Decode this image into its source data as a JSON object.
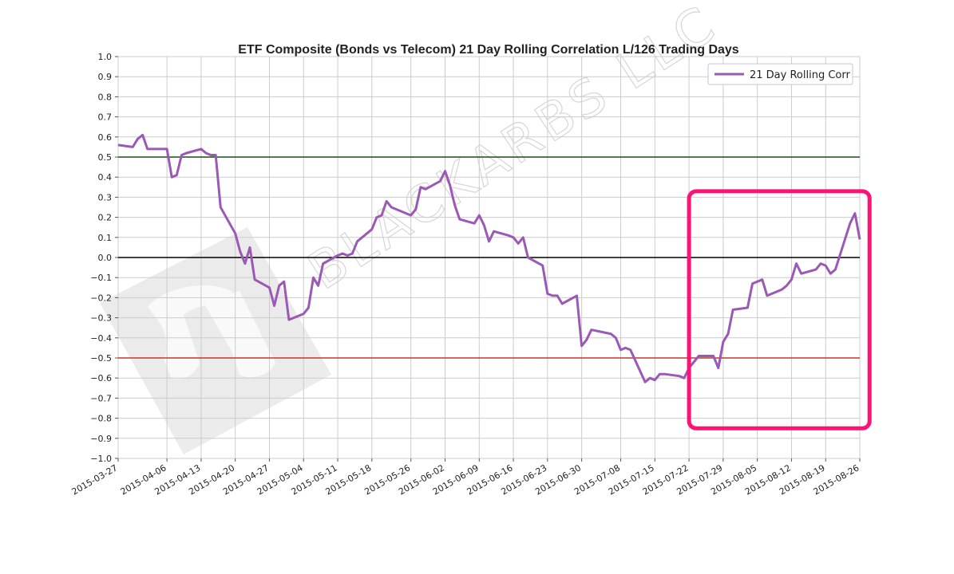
{
  "chart_data": {
    "type": "line",
    "title": "ETF Composite (Bonds vs Telecom) 21 Day Rolling Correlation L/126 Trading Days",
    "xlabel": "",
    "ylabel": "",
    "ylim": [
      -1.0,
      1.0
    ],
    "xlim": [
      "2015-03-27",
      "2015-08-26"
    ],
    "grid": true,
    "legend_placement": "top-right",
    "yticks": [
      "1.0",
      "0.9",
      "0.8",
      "0.7",
      "0.6",
      "0.5",
      "0.4",
      "0.3",
      "0.2",
      "0.1",
      "0.0",
      "−0.1",
      "−0.2",
      "−0.3",
      "−0.4",
      "−0.5",
      "−0.6",
      "−0.7",
      "−0.8",
      "−0.9",
      "−1.0"
    ],
    "xticks": [
      "2015-03-27",
      "2015-04-06",
      "2015-04-13",
      "2015-04-20",
      "2015-04-27",
      "2015-05-04",
      "2015-05-11",
      "2015-05-18",
      "2015-05-26",
      "2015-06-02",
      "2015-06-09",
      "2015-06-16",
      "2015-06-23",
      "2015-06-30",
      "2015-07-08",
      "2015-07-15",
      "2015-07-22",
      "2015-07-29",
      "2015-08-05",
      "2015-08-12",
      "2015-08-19",
      "2015-08-26"
    ],
    "reference_lines": [
      {
        "y": 0.5,
        "color": "#1a4d1a"
      },
      {
        "y": 0.0,
        "color": "#000000"
      },
      {
        "y": -0.5,
        "color": "#c0392b"
      }
    ],
    "series": [
      {
        "name": "21 Day Rolling Corr",
        "color": "#9b59b6",
        "x": [
          "2015-03-27",
          "2015-03-30",
          "2015-03-31",
          "2015-04-01",
          "2015-04-02",
          "2015-04-06",
          "2015-04-07",
          "2015-04-08",
          "2015-04-09",
          "2015-04-10",
          "2015-04-13",
          "2015-04-14",
          "2015-04-15",
          "2015-04-16",
          "2015-04-17",
          "2015-04-20",
          "2015-04-21",
          "2015-04-22",
          "2015-04-23",
          "2015-04-24",
          "2015-04-27",
          "2015-04-28",
          "2015-04-29",
          "2015-04-30",
          "2015-05-01",
          "2015-05-04",
          "2015-05-05",
          "2015-05-06",
          "2015-05-07",
          "2015-05-08",
          "2015-05-11",
          "2015-05-12",
          "2015-05-13",
          "2015-05-14",
          "2015-05-15",
          "2015-05-18",
          "2015-05-19",
          "2015-05-20",
          "2015-05-21",
          "2015-05-22",
          "2015-05-26",
          "2015-05-27",
          "2015-05-28",
          "2015-05-29",
          "2015-06-01",
          "2015-06-02",
          "2015-06-03",
          "2015-06-04",
          "2015-06-05",
          "2015-06-08",
          "2015-06-09",
          "2015-06-10",
          "2015-06-11",
          "2015-06-12",
          "2015-06-15",
          "2015-06-16",
          "2015-06-17",
          "2015-06-18",
          "2015-06-19",
          "2015-06-22",
          "2015-06-23",
          "2015-06-24",
          "2015-06-25",
          "2015-06-26",
          "2015-06-29",
          "2015-06-30",
          "2015-07-01",
          "2015-07-02",
          "2015-07-06",
          "2015-07-07",
          "2015-07-08",
          "2015-07-09",
          "2015-07-10",
          "2015-07-13",
          "2015-07-14",
          "2015-07-15",
          "2015-07-16",
          "2015-07-17",
          "2015-07-20",
          "2015-07-21",
          "2015-07-22",
          "2015-07-23",
          "2015-07-24",
          "2015-07-27",
          "2015-07-28",
          "2015-07-29",
          "2015-07-30",
          "2015-07-31",
          "2015-08-03",
          "2015-08-04",
          "2015-08-05",
          "2015-08-06",
          "2015-08-07",
          "2015-08-10",
          "2015-08-11",
          "2015-08-12",
          "2015-08-13",
          "2015-08-14",
          "2015-08-17",
          "2015-08-18",
          "2015-08-19",
          "2015-08-20",
          "2015-08-21",
          "2015-08-24",
          "2015-08-25",
          "2015-08-26"
        ],
        "y": [
          0.56,
          0.55,
          0.59,
          0.61,
          0.54,
          0.54,
          0.4,
          0.41,
          0.51,
          0.52,
          0.54,
          0.52,
          0.51,
          0.51,
          0.25,
          0.12,
          0.03,
          -0.03,
          0.05,
          -0.11,
          -0.15,
          -0.24,
          -0.14,
          -0.12,
          -0.31,
          -0.28,
          -0.25,
          -0.1,
          -0.14,
          -0.03,
          0.01,
          0.02,
          0.01,
          0.02,
          0.08,
          0.14,
          0.2,
          0.21,
          0.28,
          0.25,
          0.21,
          0.24,
          0.35,
          0.34,
          0.38,
          0.43,
          0.36,
          0.26,
          0.19,
          0.17,
          0.21,
          0.16,
          0.08,
          0.13,
          0.11,
          0.1,
          0.07,
          0.1,
          0.0,
          -0.04,
          -0.18,
          -0.19,
          -0.19,
          -0.23,
          -0.19,
          -0.44,
          -0.41,
          -0.36,
          -0.38,
          -0.4,
          -0.46,
          -0.45,
          -0.46,
          -0.62,
          -0.6,
          -0.61,
          -0.58,
          -0.58,
          -0.59,
          -0.6,
          -0.55,
          -0.52,
          -0.49,
          -0.49,
          -0.55,
          -0.42,
          -0.38,
          -0.26,
          -0.25,
          -0.13,
          -0.12,
          -0.11,
          -0.19,
          -0.16,
          -0.14,
          -0.11,
          -0.03,
          -0.08,
          -0.06,
          -0.03,
          -0.04,
          -0.08,
          -0.06,
          0.17,
          0.22,
          0.09
        ]
      }
    ],
    "highlight_box": {
      "x_start": "2015-07-22",
      "x_end": "2015-08-28",
      "y_top": 0.33,
      "y_bottom": -0.85,
      "color": "#ff1177"
    }
  },
  "watermark": {
    "text": "BLACKARBS LLC",
    "logo_icon": "blackarbs-logo-icon"
  }
}
